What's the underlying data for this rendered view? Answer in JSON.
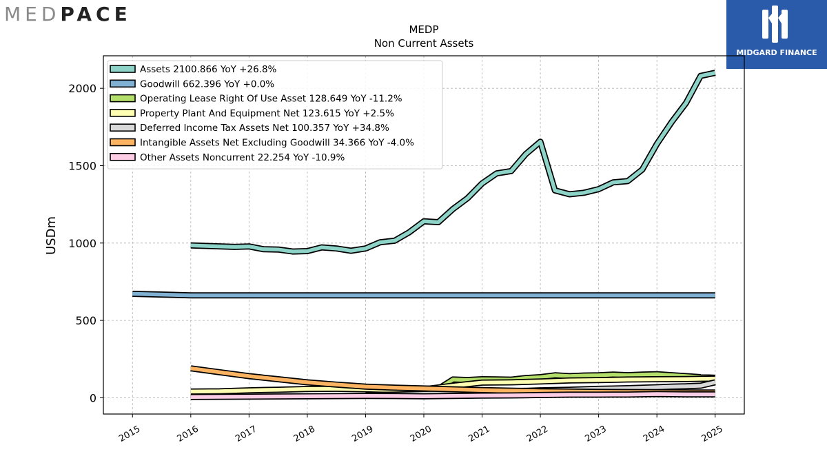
{
  "logos": {
    "left_a": "MED",
    "left_b": "PACE",
    "right": "MIDGARD FINANCE"
  },
  "chart_data": {
    "type": "area",
    "title": "MEDP",
    "subtitle": "Non Current  Assets",
    "xlabel": "",
    "ylabel": "USDm",
    "xlim": [
      2014.5,
      2025.5
    ],
    "ylim": [
      -105,
      2210
    ],
    "x_ticks": [
      2015,
      2016,
      2017,
      2018,
      2019,
      2020,
      2021,
      2022,
      2023,
      2024,
      2025
    ],
    "y_ticks": [
      0,
      500,
      1000,
      1500,
      2000
    ],
    "grid": true,
    "legend_position": "top-left",
    "series": [
      {
        "name": "Assets  2100.866 YoY +26.8%",
        "color": "#8dd3c7",
        "x": [
          2016.0,
          2016.75,
          2017.0,
          2017.25,
          2017.5,
          2017.75,
          2018.0,
          2018.25,
          2018.5,
          2018.75,
          2019.0,
          2019.25,
          2019.5,
          2019.75,
          2020.0,
          2020.25,
          2020.5,
          2020.75,
          2021.0,
          2021.25,
          2021.5,
          2021.75,
          2022.0,
          2022.25,
          2022.5,
          2022.75,
          2023.0,
          2023.25,
          2023.5,
          2023.75,
          2024.0,
          2024.25,
          2024.5,
          2024.75,
          2025.0
        ],
        "values": [
          985,
          975,
          978,
          960,
          958,
          945,
          948,
          972,
          965,
          950,
          965,
          1005,
          1015,
          1070,
          1140,
          1135,
          1220,
          1290,
          1385,
          1450,
          1465,
          1575,
          1655,
          1340,
          1315,
          1325,
          1348,
          1392,
          1400,
          1475,
          1640,
          1780,
          1905,
          2080,
          2100
        ]
      },
      {
        "name": "Goodwill  662.396 YoY +0.0%",
        "color": "#80b1d3",
        "x": [
          2015.0,
          2016.0,
          2017.0,
          2018.0,
          2019.0,
          2020.0,
          2021.0,
          2022.0,
          2023.0,
          2024.0,
          2025.0
        ],
        "values": [
          672,
          662,
          662,
          662,
          662,
          662,
          662,
          662,
          662,
          662,
          662
        ]
      },
      {
        "name": "Operating Lease Right Of Use Asset  128.649 YoY -11.2%",
        "color": "#b3de69",
        "x": [
          2019.0,
          2019.25,
          2019.5,
          2019.75,
          2020.0,
          2020.25,
          2020.5,
          2020.75,
          2021.0,
          2021.25,
          2021.5,
          2021.75,
          2022.0,
          2022.25,
          2022.5,
          2022.75,
          2023.0,
          2023.25,
          2023.5,
          2023.75,
          2024.0,
          2024.25,
          2024.5,
          2024.75,
          2025.0
        ],
        "values": [
          30,
          35,
          40,
          48,
          55,
          58,
          118,
          115,
          120,
          119,
          117,
          128,
          133,
          145,
          140,
          144,
          145,
          150,
          146,
          150,
          152,
          146,
          140,
          133,
          129
        ]
      },
      {
        "name": "Property Plant And Equipment Net  123.615 YoY +2.5%",
        "color": "#ffffb3",
        "x": [
          2016.0,
          2016.5,
          2017.0,
          2017.5,
          2018.0,
          2018.5,
          2019.0,
          2019.5,
          2020.0,
          2020.5,
          2020.75,
          2021.0,
          2021.5,
          2022.0,
          2022.5,
          2023.0,
          2023.5,
          2024.0,
          2024.5,
          2025.0
        ],
        "values": [
          40,
          42,
          48,
          52,
          57,
          58,
          55,
          50,
          55,
          78,
          88,
          98,
          100,
          105,
          112,
          114,
          118,
          120,
          121,
          124
        ]
      },
      {
        "name": "Deferred Income Tax Assets Net  100.357 YoY +34.8%",
        "color": "#d9d9d9",
        "x": [
          2019.0,
          2019.5,
          2020.0,
          2020.5,
          2021.0,
          2021.5,
          2022.0,
          2022.5,
          2023.0,
          2023.5,
          2024.0,
          2024.25,
          2024.5,
          2024.75,
          2025.0
        ],
        "values": [
          18,
          20,
          25,
          30,
          35,
          42,
          48,
          52,
          58,
          62,
          68,
          72,
          74,
          78,
          100
        ]
      },
      {
        "name": "Intangible Assets Net Excluding Goodwill  34.366 YoY -4.0%",
        "color": "#fdb462",
        "x": [
          2016.0,
          2016.5,
          2017.0,
          2017.5,
          2018.0,
          2018.5,
          2019.0,
          2019.5,
          2020.0,
          2020.5,
          2021.0,
          2021.5,
          2022.0,
          2022.5,
          2023.0,
          2023.5,
          2024.0,
          2024.5,
          2025.0
        ],
        "values": [
          190,
          165,
          140,
          120,
          100,
          85,
          72,
          65,
          60,
          55,
          50,
          46,
          42,
          40,
          38,
          37,
          36,
          35,
          34
        ]
      },
      {
        "name": "Other Assets Noncurrent  22.254 YoY -10.9%",
        "color": "#fccde5",
        "x": [
          2016.0,
          2017.0,
          2018.0,
          2019.0,
          2019.5,
          2020.0,
          2020.5,
          2021.0,
          2021.5,
          2022.0,
          2022.5,
          2023.0,
          2023.5,
          2024.0,
          2024.5,
          2025.0
        ],
        "values": [
          5,
          7,
          10,
          12,
          11,
          10,
          12,
          14,
          15,
          18,
          20,
          20,
          21,
          24,
          22,
          22
        ]
      }
    ]
  }
}
